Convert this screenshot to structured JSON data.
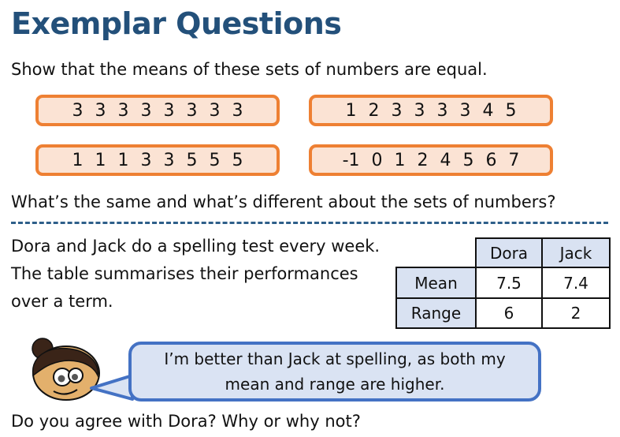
{
  "title": "Exemplar Questions",
  "q1": {
    "prompt": "Show that the means of these sets of numbers are equal.",
    "sets": [
      "3 3 3 3 3 3 3 3",
      "1 2 3 3 3 3 4 5",
      "1 1 1 3 3 5 5 5",
      "-1 0 1 2 4 5 6 7"
    ],
    "followup": "What’s the same and what’s different about the sets of numbers?"
  },
  "q2": {
    "lines": [
      "Dora and Jack do a spelling test every week.",
      "The table summarises their performances",
      "over a term."
    ],
    "table": {
      "headers": [
        "Dora",
        "Jack"
      ],
      "rows": [
        {
          "label": "Mean",
          "values": [
            "7.5",
            "7.4"
          ]
        },
        {
          "label": "Range",
          "values": [
            "6",
            "2"
          ]
        }
      ]
    },
    "speech": [
      "I’m better than Jack at spelling, as both my",
      "mean and range are higher."
    ],
    "question": "Do you agree with Dora? Why or why not?"
  },
  "colors": {
    "title": "#23507a",
    "box_border": "#ee8033",
    "box_fill": "#fbe3d4",
    "bubble_border": "#4472c4",
    "bubble_fill": "#dae3f3"
  }
}
